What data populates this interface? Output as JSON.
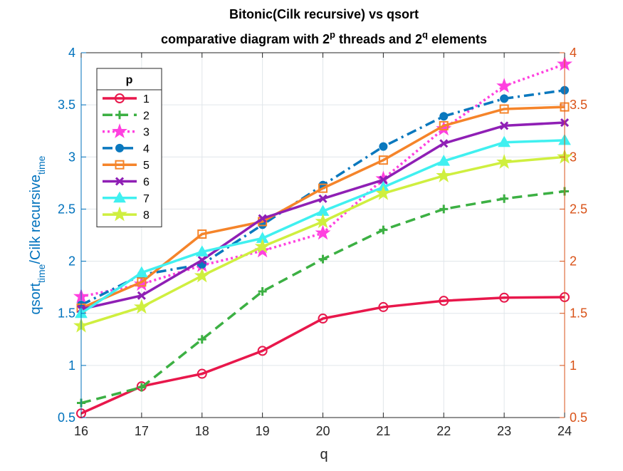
{
  "chart_data": {
    "type": "line",
    "title_line1": "Bitonic(Cilk recursive) vs qsort",
    "title_line2_parts": [
      "comparative diagram with 2",
      "p",
      " threads and 2",
      "q",
      " elements"
    ],
    "ylabel_parts": [
      "qsort",
      "time",
      "/Cilk recursive",
      "time"
    ],
    "xlabel": "q",
    "x": [
      16,
      17,
      18,
      19,
      20,
      21,
      22,
      23,
      24
    ],
    "xlim": [
      16,
      24
    ],
    "ylim": [
      0.5,
      4
    ],
    "x_ticks": [
      "16",
      "17",
      "18",
      "19",
      "20",
      "21",
      "22",
      "23",
      "24"
    ],
    "y_ticks_left": [
      "0.5",
      "1",
      "1.5",
      "2",
      "2.5",
      "3",
      "3.5",
      "4"
    ],
    "y_ticks_right": [
      "0.5",
      "1",
      "1.5",
      "2",
      "2.5",
      "3",
      "3.5",
      "4"
    ],
    "grid": true,
    "legend_title": "p",
    "legend_position": "top-left",
    "colors": {
      "left_axis": "#0072BD",
      "right_axis": "#D95319",
      "grid": "#e0e6ea",
      "axis": "#262626"
    },
    "series": [
      {
        "name": "1",
        "color": "#E8174B",
        "dash": "solid",
        "marker": "circle-open",
        "values": [
          0.54,
          0.8,
          0.92,
          1.14,
          1.45,
          1.56,
          1.62,
          1.65,
          1.655
        ]
      },
      {
        "name": "2",
        "color": "#3CB043",
        "dash": "dashed",
        "marker": "plus",
        "values": [
          0.64,
          0.79,
          1.25,
          1.71,
          2.02,
          2.3,
          2.5,
          2.6,
          2.67
        ]
      },
      {
        "name": "3",
        "color": "#FF40DF",
        "dash": "dotted",
        "marker": "star",
        "values": [
          1.66,
          1.78,
          1.96,
          2.1,
          2.27,
          2.79,
          3.27,
          3.68,
          3.89
        ]
      },
      {
        "name": "4",
        "color": "#0A78BE",
        "dash": "dashdot",
        "marker": "dot",
        "values": [
          1.58,
          1.87,
          1.97,
          2.35,
          2.73,
          3.1,
          3.39,
          3.56,
          3.64
        ]
      },
      {
        "name": "5",
        "color": "#F5842A",
        "dash": "solid",
        "marker": "square-open",
        "values": [
          1.55,
          1.8,
          2.26,
          2.38,
          2.7,
          2.97,
          3.3,
          3.46,
          3.48
        ]
      },
      {
        "name": "6",
        "color": "#8F1FB5",
        "dash": "solid",
        "marker": "x",
        "values": [
          1.54,
          1.67,
          2.01,
          2.41,
          2.6,
          2.78,
          3.13,
          3.3,
          3.33
        ]
      },
      {
        "name": "7",
        "color": "#40F0F0",
        "dash": "solid",
        "marker": "triangle",
        "values": [
          1.5,
          1.89,
          2.09,
          2.22,
          2.48,
          2.71,
          2.96,
          3.14,
          3.16
        ]
      },
      {
        "name": "8",
        "color": "#CFEF3F",
        "dash": "solid",
        "marker": "star",
        "values": [
          1.38,
          1.56,
          1.86,
          2.14,
          2.38,
          2.65,
          2.82,
          2.95,
          3.0
        ]
      }
    ]
  }
}
